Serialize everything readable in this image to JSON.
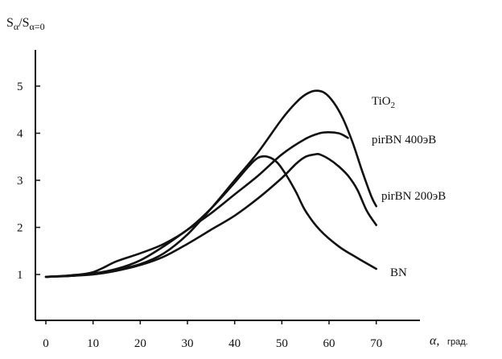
{
  "chart_data": {
    "type": "line",
    "ylabel_parts": {
      "main": "S",
      "sub1": "α",
      "slash": "/S",
      "sub2": "α=0"
    },
    "xlabel_parts": {
      "symbol": "α,",
      "unit": "град."
    },
    "xlim": [
      0,
      78
    ],
    "ylim": [
      0.5,
      6.0
    ],
    "x_ticks": [
      0,
      10,
      20,
      30,
      40,
      50,
      60,
      70
    ],
    "y_ticks": [
      1,
      2,
      3,
      4,
      5
    ],
    "grid": false,
    "series": [
      {
        "name": "TiO2",
        "label_base": "TiO",
        "label_sub": "2",
        "x": [
          0,
          5,
          10,
          15,
          20,
          25,
          30,
          35,
          40,
          45,
          50,
          53,
          55,
          57,
          59,
          61,
          63,
          65,
          67,
          69,
          70
        ],
        "y": [
          0.95,
          0.97,
          1.02,
          1.1,
          1.22,
          1.45,
          1.85,
          2.4,
          3.0,
          3.6,
          4.3,
          4.65,
          4.82,
          4.9,
          4.86,
          4.65,
          4.3,
          3.8,
          3.2,
          2.65,
          2.45
        ]
      },
      {
        "name": "pirBN 400эВ",
        "label_base": "pirBN 400эВ",
        "label_sub": "",
        "x": [
          0,
          5,
          10,
          15,
          20,
          25,
          30,
          35,
          40,
          45,
          50,
          55,
          58,
          60,
          62,
          63,
          64
        ],
        "y": [
          0.95,
          0.97,
          1.02,
          1.12,
          1.3,
          1.6,
          1.95,
          2.3,
          2.7,
          3.1,
          3.55,
          3.88,
          4.0,
          4.02,
          4.0,
          3.96,
          3.9
        ]
      },
      {
        "name": "pirBN 200эВ",
        "label_base": "pirBN 200эВ",
        "label_sub": "",
        "x": [
          0,
          5,
          10,
          15,
          20,
          25,
          30,
          35,
          40,
          45,
          50,
          53,
          55,
          57,
          58,
          60,
          62,
          64,
          66,
          68,
          70
        ],
        "y": [
          0.95,
          0.97,
          1.0,
          1.08,
          1.2,
          1.38,
          1.65,
          1.95,
          2.25,
          2.62,
          3.05,
          3.35,
          3.5,
          3.55,
          3.55,
          3.45,
          3.3,
          3.1,
          2.8,
          2.35,
          2.05
        ]
      },
      {
        "name": "BN",
        "label_base": "BN",
        "label_sub": "",
        "x": [
          0,
          5,
          10,
          15,
          20,
          25,
          30,
          35,
          40,
          43,
          45,
          47,
          49,
          51,
          53,
          55,
          58,
          62,
          66,
          70
        ],
        "y": [
          0.95,
          0.98,
          1.05,
          1.28,
          1.45,
          1.65,
          1.95,
          2.4,
          2.95,
          3.3,
          3.48,
          3.5,
          3.38,
          3.1,
          2.75,
          2.35,
          1.95,
          1.6,
          1.35,
          1.12
        ]
      }
    ]
  }
}
